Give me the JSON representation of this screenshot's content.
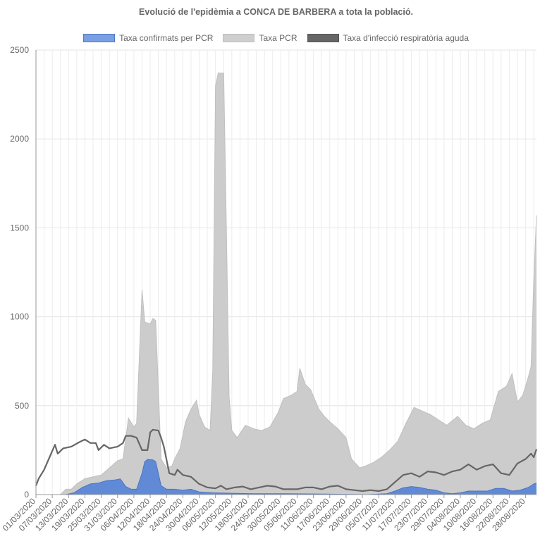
{
  "chart_data": {
    "type": "area",
    "title": "Evolució de l'epidèmia a CONCA DE BARBERA a tota la població.",
    "legend_position": "top",
    "grid": true,
    "ylim": [
      0,
      2500
    ],
    "y_ticks": [
      "0",
      "500",
      "1000",
      "1500",
      "2000",
      "2500"
    ],
    "x_range": [
      "01/03/2020",
      "01/09/2020"
    ],
    "x_ticks": [
      "01/03/2020",
      "07/03/2020",
      "13/03/2020",
      "19/03/2020",
      "25/03/2020",
      "31/03/2020",
      "06/04/2020",
      "12/04/2020",
      "18/04/2020",
      "24/04/2020",
      "30/04/2020",
      "06/05/2020",
      "12/05/2020",
      "18/05/2020",
      "24/05/2020",
      "30/05/2020",
      "05/06/2020",
      "11/06/2020",
      "17/06/2020",
      "23/06/2020",
      "29/06/2020",
      "05/07/2020",
      "11/07/2020",
      "17/07/2020",
      "23/07/2020",
      "29/07/2020",
      "04/08/2020",
      "10/08/2020",
      "16/08/2020",
      "22/08/2020",
      "28/08/2020"
    ],
    "series": [
      {
        "name": "Taxa confirmats per PCR",
        "color": "#5b86d6",
        "fill": true,
        "points": [
          [
            "01/03/2020",
            0
          ],
          [
            "12/03/2020",
            0
          ],
          [
            "15/03/2020",
            10
          ],
          [
            "18/03/2020",
            40
          ],
          [
            "21/03/2020",
            60
          ],
          [
            "24/03/2020",
            65
          ],
          [
            "27/03/2020",
            78
          ],
          [
            "30/03/2020",
            82
          ],
          [
            "01/04/2020",
            88
          ],
          [
            "03/04/2020",
            45
          ],
          [
            "05/04/2020",
            30
          ],
          [
            "07/04/2020",
            30
          ],
          [
            "09/04/2020",
            120
          ],
          [
            "10/04/2020",
            185
          ],
          [
            "11/04/2020",
            197
          ],
          [
            "13/04/2020",
            195
          ],
          [
            "14/04/2020",
            185
          ],
          [
            "15/04/2020",
            120
          ],
          [
            "16/04/2020",
            50
          ],
          [
            "18/04/2020",
            30
          ],
          [
            "21/04/2020",
            30
          ],
          [
            "24/04/2020",
            25
          ],
          [
            "27/04/2020",
            30
          ],
          [
            "30/04/2020",
            15
          ],
          [
            "05/05/2020",
            10
          ],
          [
            "10/05/2020",
            8
          ],
          [
            "20/05/2020",
            5
          ],
          [
            "01/06/2020",
            5
          ],
          [
            "15/06/2020",
            3
          ],
          [
            "01/07/2020",
            0
          ],
          [
            "08/07/2020",
            5
          ],
          [
            "11/07/2020",
            20
          ],
          [
            "14/07/2020",
            38
          ],
          [
            "17/07/2020",
            45
          ],
          [
            "20/07/2020",
            40
          ],
          [
            "23/07/2020",
            30
          ],
          [
            "26/07/2020",
            25
          ],
          [
            "29/07/2020",
            10
          ],
          [
            "01/08/2020",
            5
          ],
          [
            "04/08/2020",
            10
          ],
          [
            "07/08/2020",
            20
          ],
          [
            "10/08/2020",
            20
          ],
          [
            "14/08/2020",
            20
          ],
          [
            "17/08/2020",
            35
          ],
          [
            "20/08/2020",
            35
          ],
          [
            "23/08/2020",
            20
          ],
          [
            "26/08/2020",
            25
          ],
          [
            "29/08/2020",
            40
          ],
          [
            "31/08/2020",
            60
          ],
          [
            "01/09/2020",
            65
          ]
        ]
      },
      {
        "name": "Taxa PCR",
        "color": "#cccccc",
        "fill": true,
        "points": [
          [
            "01/03/2020",
            0
          ],
          [
            "10/03/2020",
            0
          ],
          [
            "12/03/2020",
            30
          ],
          [
            "14/03/2020",
            30
          ],
          [
            "16/03/2020",
            60
          ],
          [
            "19/03/2020",
            90
          ],
          [
            "22/03/2020",
            100
          ],
          [
            "25/03/2020",
            110
          ],
          [
            "28/03/2020",
            150
          ],
          [
            "31/03/2020",
            190
          ],
          [
            "02/04/2020",
            200
          ],
          [
            "04/04/2020",
            430
          ],
          [
            "06/04/2020",
            380
          ],
          [
            "07/04/2020",
            400
          ],
          [
            "09/04/2020",
            1150
          ],
          [
            "10/04/2020",
            970
          ],
          [
            "12/04/2020",
            960
          ],
          [
            "13/04/2020",
            990
          ],
          [
            "14/04/2020",
            980
          ],
          [
            "15/04/2020",
            600
          ],
          [
            "16/04/2020",
            200
          ],
          [
            "18/04/2020",
            150
          ],
          [
            "20/04/2020",
            160
          ],
          [
            "21/04/2020",
            200
          ],
          [
            "23/04/2020",
            260
          ],
          [
            "25/04/2020",
            410
          ],
          [
            "27/04/2020",
            480
          ],
          [
            "29/04/2020",
            530
          ],
          [
            "30/04/2020",
            450
          ],
          [
            "02/05/2020",
            380
          ],
          [
            "04/05/2020",
            360
          ],
          [
            "05/05/2020",
            700
          ],
          [
            "06/05/2020",
            2300
          ],
          [
            "07/05/2020",
            2370
          ],
          [
            "09/05/2020",
            2370
          ],
          [
            "10/05/2020",
            1500
          ],
          [
            "11/05/2020",
            550
          ],
          [
            "12/05/2020",
            360
          ],
          [
            "14/05/2020",
            320
          ],
          [
            "17/05/2020",
            390
          ],
          [
            "20/05/2020",
            370
          ],
          [
            "23/05/2020",
            360
          ],
          [
            "26/05/2020",
            380
          ],
          [
            "29/05/2020",
            460
          ],
          [
            "31/05/2020",
            540
          ],
          [
            "03/06/2020",
            560
          ],
          [
            "05/06/2020",
            580
          ],
          [
            "06/06/2020",
            710
          ],
          [
            "08/06/2020",
            620
          ],
          [
            "10/06/2020",
            590
          ],
          [
            "13/06/2020",
            480
          ],
          [
            "15/06/2020",
            440
          ],
          [
            "17/06/2020",
            410
          ],
          [
            "20/06/2020",
            370
          ],
          [
            "23/06/2020",
            320
          ],
          [
            "25/06/2020",
            200
          ],
          [
            "28/06/2020",
            150
          ],
          [
            "30/06/2020",
            160
          ],
          [
            "03/07/2020",
            180
          ],
          [
            "06/07/2020",
            210
          ],
          [
            "09/07/2020",
            250
          ],
          [
            "12/07/2020",
            300
          ],
          [
            "15/07/2020",
            400
          ],
          [
            "18/07/2020",
            490
          ],
          [
            "21/07/2020",
            470
          ],
          [
            "24/07/2020",
            450
          ],
          [
            "27/07/2020",
            420
          ],
          [
            "30/07/2020",
            390
          ],
          [
            "03/08/2020",
            440
          ],
          [
            "06/08/2020",
            390
          ],
          [
            "09/08/2020",
            370
          ],
          [
            "12/08/2020",
            400
          ],
          [
            "15/08/2020",
            420
          ],
          [
            "18/08/2020",
            580
          ],
          [
            "21/08/2020",
            610
          ],
          [
            "23/08/2020",
            680
          ],
          [
            "25/08/2020",
            520
          ],
          [
            "27/08/2020",
            560
          ],
          [
            "29/08/2020",
            660
          ],
          [
            "30/08/2020",
            720
          ],
          [
            "31/08/2020",
            1200
          ],
          [
            "01/09/2020",
            1570
          ]
        ]
      },
      {
        "name": "Taxa d'infecció respiratòria aguda",
        "color": "#666666",
        "fill": false,
        "points": [
          [
            "01/03/2020",
            50
          ],
          [
            "02/03/2020",
            90
          ],
          [
            "04/03/2020",
            140
          ],
          [
            "06/03/2020",
            210
          ],
          [
            "08/03/2020",
            280
          ],
          [
            "09/03/2020",
            230
          ],
          [
            "11/03/2020",
            260
          ],
          [
            "14/03/2020",
            270
          ],
          [
            "17/03/2020",
            295
          ],
          [
            "19/03/2020",
            310
          ],
          [
            "21/03/2020",
            290
          ],
          [
            "23/03/2020",
            290
          ],
          [
            "24/03/2020",
            250
          ],
          [
            "26/03/2020",
            280
          ],
          [
            "28/03/2020",
            260
          ],
          [
            "31/03/2020",
            270
          ],
          [
            "02/04/2020",
            290
          ],
          [
            "03/04/2020",
            330
          ],
          [
            "05/04/2020",
            330
          ],
          [
            "07/04/2020",
            320
          ],
          [
            "09/04/2020",
            250
          ],
          [
            "11/04/2020",
            250
          ],
          [
            "12/04/2020",
            350
          ],
          [
            "13/04/2020",
            365
          ],
          [
            "15/04/2020",
            360
          ],
          [
            "16/04/2020",
            320
          ],
          [
            "17/04/2020",
            270
          ],
          [
            "19/04/2020",
            120
          ],
          [
            "21/04/2020",
            110
          ],
          [
            "22/04/2020",
            140
          ],
          [
            "24/04/2020",
            110
          ],
          [
            "27/04/2020",
            100
          ],
          [
            "30/04/2020",
            60
          ],
          [
            "03/05/2020",
            40
          ],
          [
            "06/05/2020",
            35
          ],
          [
            "08/05/2020",
            50
          ],
          [
            "10/05/2020",
            30
          ],
          [
            "13/05/2020",
            40
          ],
          [
            "16/05/2020",
            45
          ],
          [
            "19/05/2020",
            30
          ],
          [
            "22/05/2020",
            40
          ],
          [
            "25/05/2020",
            50
          ],
          [
            "28/05/2020",
            45
          ],
          [
            "31/05/2020",
            30
          ],
          [
            "05/06/2020",
            30
          ],
          [
            "08/06/2020",
            40
          ],
          [
            "11/06/2020",
            40
          ],
          [
            "14/06/2020",
            30
          ],
          [
            "17/06/2020",
            45
          ],
          [
            "20/06/2020",
            50
          ],
          [
            "23/06/2020",
            30
          ],
          [
            "26/06/2020",
            25
          ],
          [
            "29/06/2020",
            20
          ],
          [
            "02/07/2020",
            25
          ],
          [
            "05/07/2020",
            20
          ],
          [
            "08/07/2020",
            30
          ],
          [
            "11/07/2020",
            70
          ],
          [
            "14/07/2020",
            110
          ],
          [
            "17/07/2020",
            120
          ],
          [
            "20/07/2020",
            100
          ],
          [
            "23/07/2020",
            130
          ],
          [
            "26/07/2020",
            125
          ],
          [
            "29/07/2020",
            110
          ],
          [
            "01/08/2020",
            130
          ],
          [
            "04/08/2020",
            140
          ],
          [
            "07/08/2020",
            170
          ],
          [
            "10/08/2020",
            140
          ],
          [
            "13/08/2020",
            160
          ],
          [
            "16/08/2020",
            170
          ],
          [
            "19/08/2020",
            120
          ],
          [
            "22/08/2020",
            110
          ],
          [
            "25/08/2020",
            175
          ],
          [
            "28/08/2020",
            200
          ],
          [
            "30/08/2020",
            230
          ],
          [
            "31/08/2020",
            210
          ],
          [
            "01/09/2020",
            255
          ]
        ]
      }
    ]
  }
}
